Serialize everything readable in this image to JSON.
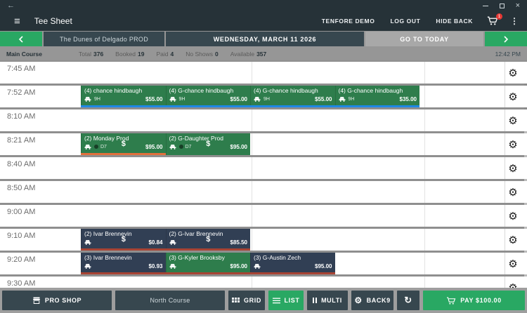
{
  "colors": {
    "topbar": "#263238",
    "button_dark": "#37474f",
    "accent_green": "#29a863",
    "booking_green": "#2e7d4c",
    "booking_navy": "#313f54",
    "blue_line": "#1e88e5",
    "orange_line": "#e1703c",
    "red_line": "#a84434",
    "badge_red": "#e53935"
  },
  "titlebar": {
    "back": "←"
  },
  "appbar": {
    "title": "Tee Sheet",
    "links": [
      "TENFORE DEMO",
      "LOG OUT",
      "HIDE BACK"
    ],
    "cart_badge": "1"
  },
  "nav": {
    "course": "The Dunes of Delgado PROD",
    "date": "WEDNESDAY, MARCH 11 2026",
    "today": "GO TO TODAY"
  },
  "stats": {
    "course": "Main Course",
    "metrics": [
      {
        "label": "Total",
        "value": "376"
      },
      {
        "label": "Booked",
        "value": "19"
      },
      {
        "label": "Paid",
        "value": "4"
      },
      {
        "label": "No Shows",
        "value": "0"
      },
      {
        "label": "Available",
        "value": "357"
      }
    ],
    "clock": "12:42 PM"
  },
  "sheet": {
    "rows": [
      {
        "time": "7:45 AM",
        "bookings": []
      },
      {
        "time": "7:52 AM",
        "underline": {
          "color": "blue_line",
          "slot": 0,
          "span": 4
        },
        "bookings": [
          {
            "slot": 0,
            "style": "green",
            "name": "(4) chance hindbaugh",
            "cart": true,
            "tag": "9H",
            "price": "$55.00"
          },
          {
            "slot": 1,
            "style": "green",
            "name": "(4) G-chance hindbaugh",
            "cart": true,
            "tag": "9H",
            "price": "$55.00"
          },
          {
            "slot": 2,
            "style": "green",
            "name": "(4) G-chance hindbaugh",
            "cart": true,
            "tag": "9H",
            "price": "$55.00"
          },
          {
            "slot": 3,
            "style": "green",
            "name": "(4) G-chance hindbaugh",
            "cart": true,
            "tag": "9H",
            "price": "$35.00"
          }
        ]
      },
      {
        "time": "8:10 AM",
        "bookings": []
      },
      {
        "time": "8:21 AM",
        "underline": {
          "color": "orange_line",
          "slot": 0,
          "span": 1
        },
        "bookings": [
          {
            "slot": 0,
            "style": "green",
            "name": "(2) Monday Prod",
            "center": "$",
            "cart": true,
            "dot": true,
            "tag": "D7",
            "price": "$95.00"
          },
          {
            "slot": 1,
            "style": "green",
            "name": "(2) G-Daughter Prod",
            "center": "$",
            "cart": true,
            "dot": true,
            "tag": "D7",
            "price": "$95.00"
          }
        ]
      },
      {
        "time": "8:40 AM",
        "bookings": []
      },
      {
        "time": "8:50 AM",
        "bookings": []
      },
      {
        "time": "9:00 AM",
        "bookings": []
      },
      {
        "time": "9:10 AM",
        "underline": {
          "color": "red_line",
          "slot": 0,
          "span": 2
        },
        "bookings": [
          {
            "slot": 0,
            "style": "navy",
            "name": "(2) Ivar Brennevin",
            "center": "$",
            "cart": true,
            "price": "$0.84"
          },
          {
            "slot": 1,
            "style": "navy",
            "name": "(2) G-Ivar Brennevin",
            "center": "$",
            "cart": true,
            "price": "$85.50"
          }
        ]
      },
      {
        "time": "9:20 AM",
        "underline": {
          "color": "red_line",
          "slot": 0,
          "span": 3
        },
        "bookings": [
          {
            "slot": 0,
            "style": "navy",
            "name": "(3) Ivar Brennevin",
            "cart": true,
            "price": "$0.93"
          },
          {
            "slot": 1,
            "style": "green",
            "name": "(3) G-Kyler Brooksby",
            "cart": true,
            "price": "$95.00"
          },
          {
            "slot": 2,
            "style": "navy",
            "name": "(3) G-Austin Zech",
            "cart": true,
            "price": "$95.00"
          }
        ]
      },
      {
        "time": "9:30 AM",
        "bookings": []
      }
    ]
  },
  "toolbar": {
    "pro_shop": "PRO SHOP",
    "course_select": "North Course",
    "grid": "GRID",
    "list": "LIST",
    "multi": "MULTI",
    "back9": "BACK9",
    "pay": "PAY $100.00"
  }
}
